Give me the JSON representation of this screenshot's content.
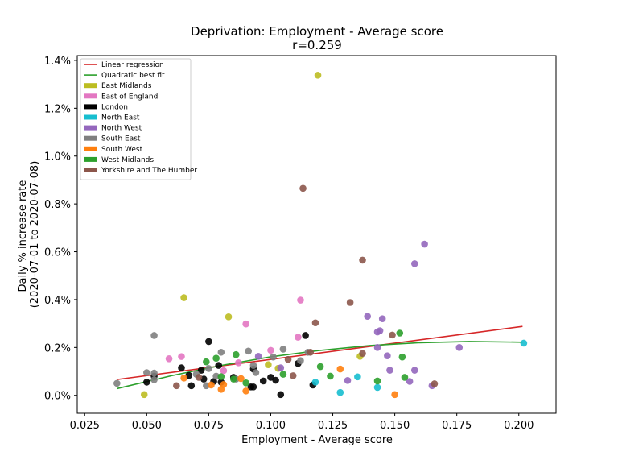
{
  "chart_data": {
    "type": "scatter",
    "title": "Deprivation: Employment - Average score",
    "subtitle": "r=0.259",
    "xlabel": "Employment - Average score",
    "ylabel": "Daily % increase rate (2020-07-01 to 2020-07-08)",
    "xlim": [
      0.022,
      0.215
    ],
    "ylim": [
      -0.075,
      1.42
    ],
    "xticks": [
      0.025,
      0.05,
      0.075,
      0.1,
      0.125,
      0.15,
      0.175,
      0.2
    ],
    "xtick_labels": [
      "0.025",
      "0.050",
      "0.075",
      "0.100",
      "0.125",
      "0.150",
      "0.175",
      "0.200"
    ],
    "yticks": [
      0,
      0.2,
      0.4,
      0.6,
      0.8,
      1.0,
      1.2,
      1.4
    ],
    "ytick_labels": [
      "0.0%",
      "0.2%",
      "0.4%",
      "0.6%",
      "0.8%",
      "1.0%",
      "1.2%",
      "1.4%"
    ],
    "grid": false,
    "legend_position": "top-left",
    "lines": [
      {
        "name": "Linear regression",
        "color": "#d62728",
        "x": [
          0.038,
          0.2015
        ],
        "y": [
          0.066,
          0.288
        ]
      },
      {
        "name": "Quadratic best fit",
        "color": "#2ca02c",
        "x": [
          0.038,
          0.06,
          0.08,
          0.1,
          0.12,
          0.14,
          0.16,
          0.18,
          0.2015
        ],
        "y": [
          0.028,
          0.082,
          0.125,
          0.161,
          0.188,
          0.208,
          0.22,
          0.225,
          0.222
        ]
      }
    ],
    "series": [
      {
        "name": "East Midlands",
        "color": "#bcbd22",
        "points": [
          [
            0.049,
            0.003
          ],
          [
            0.065,
            0.408
          ],
          [
            0.083,
            0.328
          ],
          [
            0.099,
            0.128
          ],
          [
            0.103,
            0.113
          ],
          [
            0.119,
            1.338
          ],
          [
            0.136,
            0.163
          ]
        ]
      },
      {
        "name": "East of England",
        "color": "#e377c2",
        "points": [
          [
            0.059,
            0.153
          ],
          [
            0.064,
            0.162
          ],
          [
            0.081,
            0.103
          ],
          [
            0.087,
            0.136
          ],
          [
            0.09,
            0.298
          ],
          [
            0.1,
            0.188
          ],
          [
            0.111,
            0.243
          ],
          [
            0.112,
            0.398
          ]
        ]
      },
      {
        "name": "London",
        "color": "#000000",
        "points": [
          [
            0.05,
            0.055
          ],
          [
            0.053,
            0.08
          ],
          [
            0.064,
            0.115
          ],
          [
            0.067,
            0.083
          ],
          [
            0.068,
            0.04
          ],
          [
            0.072,
            0.105
          ],
          [
            0.073,
            0.068
          ],
          [
            0.075,
            0.225
          ],
          [
            0.077,
            0.058
          ],
          [
            0.079,
            0.125
          ],
          [
            0.08,
            0.055
          ],
          [
            0.085,
            0.075
          ],
          [
            0.092,
            0.035
          ],
          [
            0.093,
            0.11
          ],
          [
            0.093,
            0.035
          ],
          [
            0.097,
            0.06
          ],
          [
            0.1,
            0.075
          ],
          [
            0.102,
            0.063
          ],
          [
            0.104,
            0.003
          ],
          [
            0.111,
            0.133
          ],
          [
            0.114,
            0.25
          ],
          [
            0.117,
            0.043
          ]
        ]
      },
      {
        "name": "North East",
        "color": "#17becf",
        "points": [
          [
            0.118,
            0.055
          ],
          [
            0.128,
            0.012
          ],
          [
            0.135,
            0.077
          ],
          [
            0.143,
            0.033
          ],
          [
            0.202,
            0.218
          ]
        ]
      },
      {
        "name": "North West",
        "color": "#9467bd",
        "points": [
          [
            0.095,
            0.163
          ],
          [
            0.104,
            0.115
          ],
          [
            0.131,
            0.062
          ],
          [
            0.139,
            0.33
          ],
          [
            0.143,
            0.2
          ],
          [
            0.143,
            0.265
          ],
          [
            0.144,
            0.27
          ],
          [
            0.145,
            0.32
          ],
          [
            0.147,
            0.165
          ],
          [
            0.148,
            0.105
          ],
          [
            0.156,
            0.058
          ],
          [
            0.158,
            0.105
          ],
          [
            0.158,
            0.55
          ],
          [
            0.162,
            0.632
          ],
          [
            0.165,
            0.04
          ],
          [
            0.176,
            0.2
          ]
        ]
      },
      {
        "name": "South East",
        "color": "#7f7f7f",
        "points": [
          [
            0.038,
            0.05
          ],
          [
            0.05,
            0.095
          ],
          [
            0.053,
            0.065
          ],
          [
            0.053,
            0.093
          ],
          [
            0.053,
            0.25
          ],
          [
            0.07,
            0.088
          ],
          [
            0.074,
            0.04
          ],
          [
            0.075,
            0.112
          ],
          [
            0.078,
            0.08
          ],
          [
            0.08,
            0.18
          ],
          [
            0.086,
            0.068
          ],
          [
            0.091,
            0.185
          ],
          [
            0.093,
            0.125
          ],
          [
            0.094,
            0.095
          ],
          [
            0.101,
            0.16
          ],
          [
            0.105,
            0.193
          ],
          [
            0.112,
            0.145
          ],
          [
            0.115,
            0.18
          ]
        ]
      },
      {
        "name": "South West",
        "color": "#ff7f0e",
        "points": [
          [
            0.065,
            0.072
          ],
          [
            0.076,
            0.043
          ],
          [
            0.08,
            0.025
          ],
          [
            0.081,
            0.045
          ],
          [
            0.088,
            0.07
          ],
          [
            0.09,
            0.018
          ],
          [
            0.128,
            0.11
          ],
          [
            0.15,
            0.003
          ]
        ]
      },
      {
        "name": "West Midlands",
        "color": "#2ca02c",
        "points": [
          [
            0.074,
            0.14
          ],
          [
            0.078,
            0.155
          ],
          [
            0.08,
            0.078
          ],
          [
            0.085,
            0.068
          ],
          [
            0.086,
            0.17
          ],
          [
            0.09,
            0.052
          ],
          [
            0.105,
            0.088
          ],
          [
            0.12,
            0.12
          ],
          [
            0.124,
            0.08
          ],
          [
            0.143,
            0.06
          ],
          [
            0.152,
            0.26
          ],
          [
            0.153,
            0.16
          ],
          [
            0.154,
            0.075
          ]
        ]
      },
      {
        "name": "Yorkshire and The Humber",
        "color": "#8c564b",
        "points": [
          [
            0.062,
            0.04
          ],
          [
            0.071,
            0.075
          ],
          [
            0.107,
            0.15
          ],
          [
            0.109,
            0.082
          ],
          [
            0.113,
            0.865
          ],
          [
            0.116,
            0.18
          ],
          [
            0.118,
            0.303
          ],
          [
            0.132,
            0.388
          ],
          [
            0.137,
            0.565
          ],
          [
            0.137,
            0.175
          ],
          [
            0.149,
            0.252
          ],
          [
            0.166,
            0.048
          ]
        ]
      }
    ]
  }
}
